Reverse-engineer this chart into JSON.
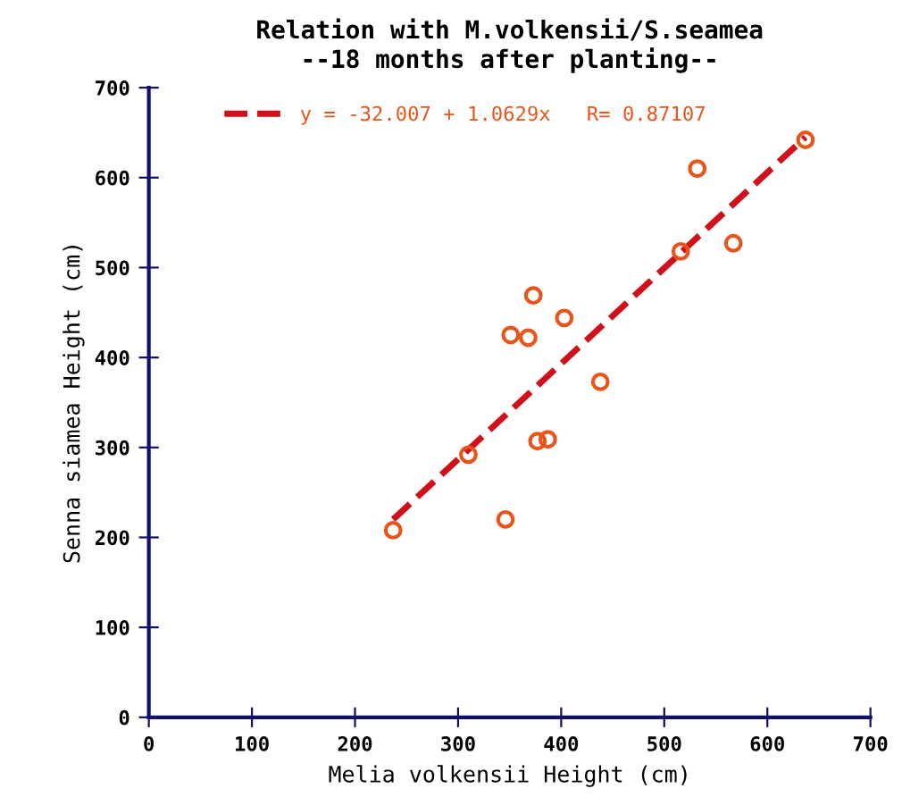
{
  "chart_data": {
    "type": "scatter",
    "title": "Relation with M.volkensii/S.seamea\n--18 months after planting--",
    "xlabel": "Melia volkensii Height (cm)",
    "ylabel": "Senna siamea Height (cm)",
    "xlim": [
      0,
      700
    ],
    "ylim": [
      0,
      700
    ],
    "xticks": [
      0,
      100,
      200,
      300,
      400,
      500,
      600,
      700
    ],
    "yticks": [
      0,
      100,
      200,
      300,
      400,
      500,
      600,
      700
    ],
    "grid": false,
    "legend": "top left",
    "series": [
      {
        "marker": "circle",
        "color": "#e8541a",
        "x": [
          637,
          532,
          516,
          567,
          373,
          403,
          351,
          368,
          438,
          377,
          387,
          310,
          346,
          237
        ],
        "values": [
          642,
          610,
          518,
          527,
          469,
          444,
          425,
          422,
          373,
          307,
          309,
          292,
          220,
          208
        ]
      },
      {
        "type": "line",
        "name": "y = -32.007 + 1.0629x   R= 0.87107",
        "color": "#d0101a",
        "line_style": "dashed",
        "x": [
          237,
          637
        ],
        "values": [
          220,
          645
        ]
      }
    ]
  }
}
